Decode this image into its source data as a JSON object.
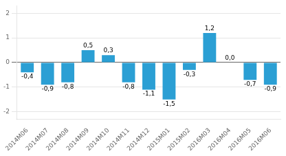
{
  "chart_data": {
    "type": "bar",
    "categories": [
      "2014M06",
      "2014M07",
      "2014M08",
      "2014M09",
      "2014M10",
      "2014M11",
      "2014M12",
      "2015M01",
      "2015M02",
      "2016M03",
      "2016M04",
      "2016M05",
      "2016M06"
    ],
    "values": [
      -0.4,
      -0.9,
      -0.8,
      0.5,
      0.3,
      -0.8,
      -1.1,
      -1.5,
      -0.3,
      1.2,
      0.0,
      -0.7,
      -0.9
    ],
    "value_labels": [
      "-0,4",
      "-0,9",
      "-0,8",
      "0,5",
      "0,3",
      "-0,8",
      "-1,1",
      "-1,5",
      "-0,3",
      "1,2",
      "0,0",
      "-0,7",
      "-0,9"
    ],
    "data_labels": true,
    "color": "#2b9fd4",
    "ylim": [
      -2.3,
      2.3
    ],
    "yticks": [
      -2,
      -1,
      0,
      1,
      2
    ],
    "grid": true
  }
}
